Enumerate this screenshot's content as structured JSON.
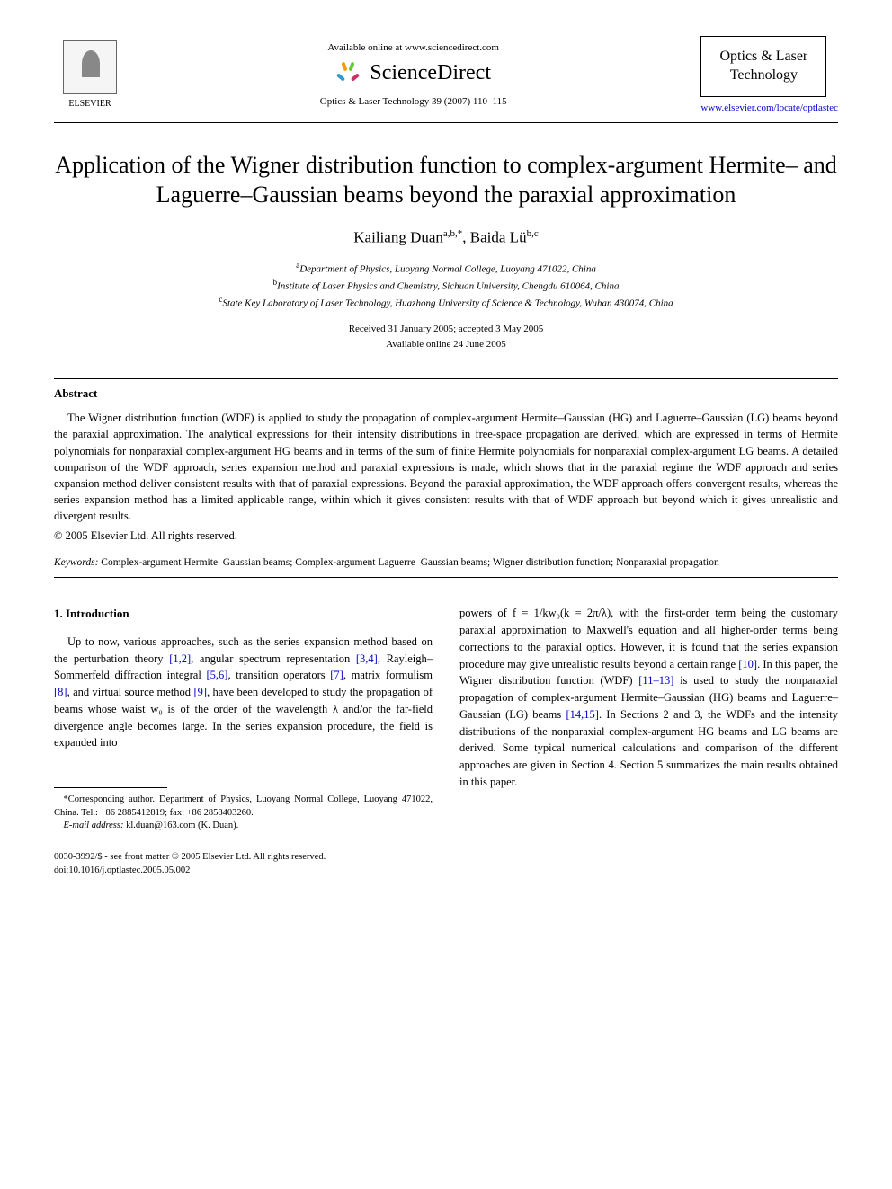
{
  "header": {
    "publisher_name": "ELSEVIER",
    "available_text": "Available online at www.sciencedirect.com",
    "sciencedirect": "ScienceDirect",
    "journal_ref": "Optics & Laser Technology 39 (2007) 110–115",
    "journal_box_line1": "Optics & Laser",
    "journal_box_line2": "Technology",
    "journal_url": "www.elsevier.com/locate/optlastec"
  },
  "title": "Application of the Wigner distribution function to complex-argument Hermite– and Laguerre–Gaussian beams beyond the paraxial approximation",
  "authors": {
    "a1_name": "Kailiang Duan",
    "a1_sup": "a,b,*",
    "a2_name": "Baida Lü",
    "a2_sup": "b,c"
  },
  "affiliations": {
    "a": "Department of Physics, Luoyang Normal College, Luoyang 471022, China",
    "b": "Institute of Laser Physics and Chemistry, Sichuan University, Chengdu 610064, China",
    "c": "State Key Laboratory of Laser Technology, Huazhong University of Science & Technology, Wuhan 430074, China"
  },
  "dates": {
    "received": "Received 31 January 2005; accepted 3 May 2005",
    "online": "Available online 24 June 2005"
  },
  "abstract": {
    "heading": "Abstract",
    "text": "The Wigner distribution function (WDF) is applied to study the propagation of complex-argument Hermite–Gaussian (HG) and Laguerre–Gaussian (LG) beams beyond the paraxial approximation. The analytical expressions for their intensity distributions in free-space propagation are derived, which are expressed in terms of Hermite polynomials for nonparaxial complex-argument HG beams and in terms of the sum of finite Hermite polynomials for nonparaxial complex-argument LG beams. A detailed comparison of the WDF approach, series expansion method and paraxial expressions is made, which shows that in the paraxial regime the WDF approach and series expansion method deliver consistent results with that of paraxial expressions. Beyond the paraxial approximation, the WDF approach offers convergent results, whereas the series expansion method has a limited applicable range, within which it gives consistent results with that of WDF approach but beyond which it gives unrealistic and divergent results.",
    "copyright": "© 2005 Elsevier Ltd. All rights reserved."
  },
  "keywords": {
    "label": "Keywords:",
    "text": " Complex-argument Hermite–Gaussian beams; Complex-argument Laguerre–Gaussian beams; Wigner distribution function; Nonparaxial propagation"
  },
  "section1": {
    "heading": "1. Introduction",
    "col1_pre": "Up to now, various approaches, such as the series expansion method based on the perturbation theory ",
    "ref12": "[1,2]",
    "col1_a": ", angular spectrum representation ",
    "ref34": "[3,4]",
    "col1_b": ", Rayleigh–Sommerfeld diffraction integral ",
    "ref56": "[5,6]",
    "col1_c": ", transition operators ",
    "ref7": "[7]",
    "col1_d": ", matrix formulism ",
    "ref8": "[8]",
    "col1_e": ", and virtual source method ",
    "ref9": "[9]",
    "col1_f": ", have been developed to study the propagation of beams whose waist w₀ is of the order of the wavelength λ and/or the far-field divergence angle becomes large. In the series expansion procedure, the field is expanded into",
    "col2_pre": "powers of f = 1/kw₀(k = 2π/λ), with the first-order term being the customary paraxial approximation to Maxwell's equation and all higher-order terms being corrections to the paraxial optics. However, it is found that the series expansion procedure may give unrealistic results beyond a certain range ",
    "ref10": "[10]",
    "col2_a": ". In this paper, the Wigner distribution function (WDF) ",
    "ref1113": "[11–13]",
    "col2_b": " is used to study the nonparaxial propagation of complex-argument Hermite–Gaussian (HG) beams and Laguerre–Gaussian (LG) beams ",
    "ref1415": "[14,15]",
    "col2_c": ". In Sections 2 and 3, the WDFs and the intensity distributions of the nonparaxial complex-argument HG beams and LG beams are derived. Some typical numerical calculations and comparison of the different approaches are given in Section 4. Section 5 summarizes the main results obtained in this paper."
  },
  "footnote": {
    "corr": "*Corresponding author. Department of Physics, Luoyang Normal College, Luoyang 471022, China. Tel.: +86 2885412819; fax: +86 2858403260.",
    "email_label": "E-mail address:",
    "email": " kl.duan@163.com (K. Duan)."
  },
  "footer": {
    "line1": "0030-3992/$ - see front matter © 2005 Elsevier Ltd. All rights reserved.",
    "line2": "doi:10.1016/j.optlastec.2005.05.002"
  }
}
